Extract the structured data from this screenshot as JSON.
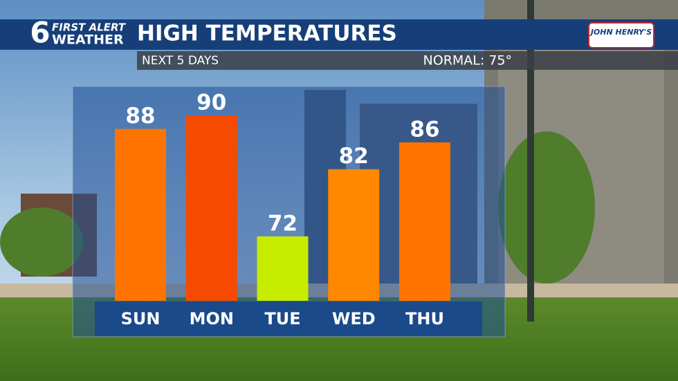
{
  "chart_data": {
    "type": "bar",
    "brand": {
      "number": "6",
      "line1": "FIRST ALERT",
      "line2": "WEATHER"
    },
    "title": "HIGH TEMPERATURES",
    "subtitle": "NEXT 5 DAYS",
    "note": "NORMAL: 75°",
    "sponsor": "JOHN HENRY'S",
    "categories": [
      "SUN",
      "MON",
      "TUE",
      "WED",
      "THU"
    ],
    "values": [
      88,
      90,
      72,
      82,
      86
    ],
    "colors": [
      "#ff7400",
      "#f54a00",
      "#c6ec00",
      "#ff8800",
      "#ff7400"
    ],
    "ylim": [
      62.4,
      100
    ]
  }
}
